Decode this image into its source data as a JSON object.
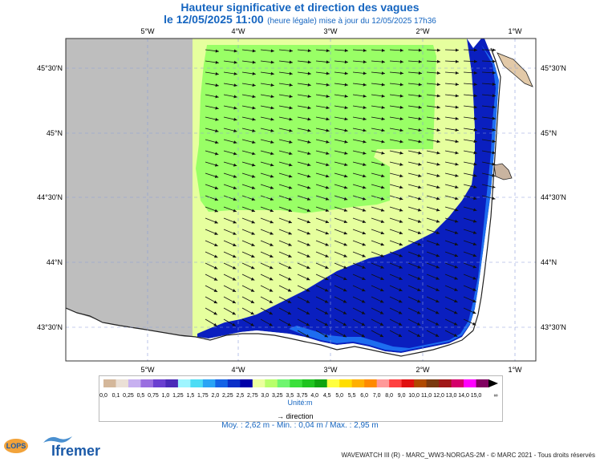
{
  "title": {
    "line1": "Hauteur significative et direction des vagues",
    "date": "le 12/05/2025 11:00",
    "update": "(heure légale) mise à jour du 12/05/2025 17h36"
  },
  "axes": {
    "lon_labels": [
      "5°W",
      "4°W",
      "3°W",
      "2°W",
      "1°W"
    ],
    "lat_labels": [
      "45°30'N",
      "45°N",
      "44°30'N",
      "44°N",
      "43°30'N"
    ]
  },
  "legend": {
    "values": [
      "0,0",
      "0,1",
      "0,25",
      "0,5",
      "0,75",
      "1,0",
      "1,25",
      "1,5",
      "1,75",
      "2,0",
      "2,25",
      "2,5",
      "2,75",
      "3,0",
      "3,25",
      "3,5",
      "3,75",
      "4,0",
      "4,5",
      "5,0",
      "5,5",
      "6,0",
      "7,0",
      "8,0",
      "9,0",
      "10,0",
      "11,0",
      "12,0",
      "13,0",
      "14,0",
      "15,0",
      "∞"
    ],
    "colors": [
      "#d4b79a",
      "#ebe0d6",
      "#c7b0f0",
      "#9a6fe0",
      "#6a3fd0",
      "#4a2ab8",
      "#9ff5ff",
      "#4ddcf5",
      "#2aa4f5",
      "#1463e6",
      "#0a2fc8",
      "#0000a8",
      "#ecff9e",
      "#b8ff6b",
      "#6ff56f",
      "#3be03b",
      "#1fc41f",
      "#0fa30f",
      "#ffff40",
      "#ffdd00",
      "#ffb000",
      "#ff8a00",
      "#ff9999",
      "#ff4040",
      "#e01010",
      "#b04a00",
      "#7a3a10",
      "#a01818",
      "#d4006a",
      "#ff00ff",
      "#800060"
    ],
    "unit": "Unité:m",
    "direction_label": "direction"
  },
  "stats": "Moy. : 2,62 m   -   Min. : 0,04 m / Max. : 2,95 m",
  "footer": "WAVEWATCH III (R) - MARC_WW3-NORGAS-2M - © MARC 2021 - Tous droits réservés",
  "branding": {
    "lops": "LOPS",
    "ifremer": "Ifremer"
  }
}
